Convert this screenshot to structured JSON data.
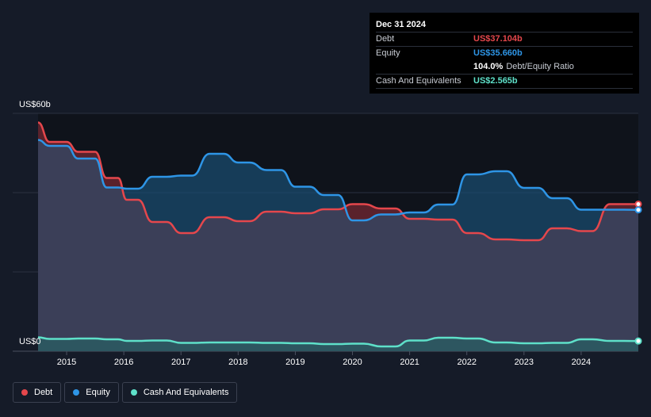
{
  "tooltip": {
    "date": "Dec 31 2024",
    "rows": [
      {
        "label": "Debt",
        "value": "US$37.104b",
        "color": "#e5474c"
      },
      {
        "label": "Equity",
        "value": "US$35.660b",
        "color": "#2e95e6"
      },
      {
        "label": "",
        "value": "104.0%",
        "suffix": "Debt/Equity Ratio",
        "color": "#ffffff"
      },
      {
        "label": "Cash And Equivalents",
        "value": "US$2.565b",
        "color": "#5ee0c9"
      }
    ]
  },
  "legend": [
    {
      "label": "Debt",
      "color": "#e5474c"
    },
    {
      "label": "Equity",
      "color": "#2e95e6"
    },
    {
      "label": "Cash And Equivalents",
      "color": "#5ee0c9"
    }
  ],
  "chart_data": {
    "type": "line",
    "title": "",
    "xlabel": "",
    "ylabel": "",
    "y_top_label": "US$60b",
    "y_bottom_label": "US$0",
    "ylim": [
      0,
      60
    ],
    "xlim": [
      2014.5,
      2025.0
    ],
    "x_ticks": [
      "2015",
      "2016",
      "2017",
      "2018",
      "2019",
      "2020",
      "2021",
      "2022",
      "2023",
      "2024"
    ],
    "series": [
      {
        "name": "Debt",
        "color": "#e5474c",
        "x": [
          2014.5,
          2014.7,
          2015.0,
          2015.2,
          2015.5,
          2015.7,
          2015.9,
          2016.05,
          2016.25,
          2016.5,
          2016.75,
          2017.0,
          2017.2,
          2017.5,
          2017.75,
          2018.0,
          2018.2,
          2018.5,
          2018.75,
          2019.0,
          2019.25,
          2019.5,
          2019.75,
          2020.0,
          2020.2,
          2020.5,
          2020.75,
          2021.0,
          2021.25,
          2021.5,
          2021.75,
          2022.0,
          2022.2,
          2022.5,
          2022.7,
          2023.0,
          2023.25,
          2023.5,
          2023.75,
          2024.0,
          2024.2,
          2024.5,
          2024.75,
          2025.0
        ],
        "y": [
          57.7,
          52.8,
          52.8,
          50.3,
          50.3,
          43.7,
          43.7,
          38.2,
          38.2,
          32.6,
          32.6,
          29.8,
          29.8,
          33.8,
          33.8,
          32.8,
          32.8,
          35.2,
          35.2,
          34.8,
          34.8,
          35.8,
          35.8,
          37.1,
          37.1,
          36.0,
          36.0,
          33.4,
          33.4,
          33.2,
          33.2,
          29.8,
          29.8,
          28.2,
          28.2,
          28.0,
          28.0,
          31.0,
          31.0,
          30.3,
          30.3,
          37.1,
          37.1,
          37.104
        ]
      },
      {
        "name": "Equity",
        "color": "#2e95e6",
        "x": [
          2014.5,
          2014.7,
          2015.0,
          2015.2,
          2015.5,
          2015.7,
          2015.9,
          2016.05,
          2016.25,
          2016.5,
          2016.75,
          2017.0,
          2017.2,
          2017.5,
          2017.75,
          2018.0,
          2018.2,
          2018.5,
          2018.75,
          2019.0,
          2019.25,
          2019.5,
          2019.75,
          2020.0,
          2020.2,
          2020.5,
          2020.75,
          2021.0,
          2021.25,
          2021.5,
          2021.75,
          2022.0,
          2022.2,
          2022.5,
          2022.7,
          2023.0,
          2023.25,
          2023.5,
          2023.75,
          2024.0,
          2024.2,
          2024.5,
          2024.75,
          2025.0
        ],
        "y": [
          53.3,
          51.8,
          51.8,
          48.6,
          48.6,
          41.3,
          41.3,
          41.0,
          41.0,
          44.0,
          44.0,
          44.3,
          44.3,
          49.8,
          49.8,
          47.6,
          47.6,
          45.7,
          45.7,
          41.5,
          41.5,
          39.4,
          39.4,
          33.0,
          33.0,
          34.5,
          34.5,
          35.0,
          35.0,
          37.0,
          37.0,
          44.6,
          44.6,
          45.4,
          45.4,
          41.2,
          41.2,
          38.6,
          38.6,
          35.7,
          35.7,
          35.7,
          35.7,
          35.66
        ]
      },
      {
        "name": "Cash And Equivalents",
        "color": "#5ee0c9",
        "x": [
          2014.5,
          2014.7,
          2015.0,
          2015.2,
          2015.5,
          2015.7,
          2015.9,
          2016.05,
          2016.25,
          2016.5,
          2016.75,
          2017.0,
          2017.2,
          2017.5,
          2017.75,
          2018.0,
          2018.2,
          2018.5,
          2018.75,
          2019.0,
          2019.25,
          2019.5,
          2019.75,
          2020.0,
          2020.2,
          2020.5,
          2020.75,
          2021.0,
          2021.25,
          2021.5,
          2021.75,
          2022.0,
          2022.2,
          2022.5,
          2022.7,
          2023.0,
          2023.25,
          2023.5,
          2023.75,
          2024.0,
          2024.2,
          2024.5,
          2024.75,
          2025.0
        ],
        "y": [
          3.5,
          3.1,
          3.1,
          3.2,
          3.2,
          3.0,
          3.0,
          2.6,
          2.6,
          2.7,
          2.7,
          2.1,
          2.1,
          2.2,
          2.2,
          2.2,
          2.2,
          2.1,
          2.1,
          2.0,
          2.0,
          1.8,
          1.8,
          1.9,
          1.9,
          1.2,
          1.2,
          2.7,
          2.7,
          3.4,
          3.4,
          3.2,
          3.2,
          2.2,
          2.2,
          2.0,
          2.0,
          2.1,
          2.1,
          3.0,
          3.0,
          2.6,
          2.6,
          2.565
        ]
      }
    ]
  }
}
